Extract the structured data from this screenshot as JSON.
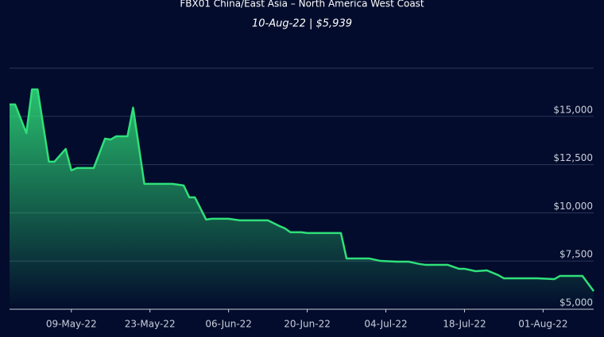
{
  "chart_data": {
    "type": "area-line",
    "title": "FBX01 China/East Asia – North America West Coast",
    "subtitle": "10-Aug-22 | $5,939",
    "x": [
      "2022-04-28",
      "2022-04-29",
      "2022-05-01",
      "2022-05-02",
      "2022-05-03",
      "2022-05-05",
      "2022-05-06",
      "2022-05-08",
      "2022-05-09",
      "2022-05-10",
      "2022-05-13",
      "2022-05-15",
      "2022-05-16",
      "2022-05-17",
      "2022-05-19",
      "2022-05-20",
      "2022-05-22",
      "2022-05-27",
      "2022-05-29",
      "2022-05-30",
      "2022-05-31",
      "2022-06-02",
      "2022-06-03",
      "2022-06-06",
      "2022-06-08",
      "2022-06-13",
      "2022-06-15",
      "2022-06-16",
      "2022-06-17",
      "2022-06-19",
      "2022-06-20",
      "2022-06-26",
      "2022-06-27",
      "2022-07-01",
      "2022-07-03",
      "2022-07-06",
      "2022-07-08",
      "2022-07-10",
      "2022-07-11",
      "2022-07-15",
      "2022-07-17",
      "2022-07-18",
      "2022-07-20",
      "2022-07-22",
      "2022-07-24",
      "2022-07-25",
      "2022-07-31",
      "2022-08-03",
      "2022-08-04",
      "2022-08-08",
      "2022-08-10"
    ],
    "series": [
      {
        "color": "#2fe07a",
        "values": [
          15617,
          15617,
          14136,
          16399,
          16399,
          12654,
          12654,
          13313,
          12202,
          12325,
          12325,
          13848,
          13800,
          13971,
          13971,
          15453,
          11502,
          11502,
          11420,
          10802,
          10802,
          9650,
          9691,
          9691,
          9609,
          9609,
          9321,
          9198,
          8992,
          8992,
          8951,
          8951,
          7634,
          7634,
          7510,
          7469,
          7469,
          7346,
          7305,
          7305,
          7099,
          7099,
          6975,
          7016,
          6770,
          6605,
          6605,
          6560,
          6728,
          6728,
          5939
        ]
      }
    ],
    "xlim": [
      "2022-04-28",
      "2022-08-10"
    ],
    "xticks": [
      {
        "value": "2022-05-09",
        "label": "09-May-22"
      },
      {
        "value": "2022-05-23",
        "label": "23-May-22"
      },
      {
        "value": "2022-06-06",
        "label": "06-Jun-22"
      },
      {
        "value": "2022-06-20",
        "label": "20-Jun-22"
      },
      {
        "value": "2022-07-04",
        "label": "04-Jul-22"
      },
      {
        "value": "2022-07-18",
        "label": "18-Jul-22"
      },
      {
        "value": "2022-08-01",
        "label": "01-Aug-22"
      }
    ],
    "ylim": [
      5000,
      17500
    ],
    "yticks": [
      {
        "value": 5000,
        "label": "$5,000"
      },
      {
        "value": 7500,
        "label": "$7,500"
      },
      {
        "value": 10000,
        "label": "$10,000"
      },
      {
        "value": 12500,
        "label": "$12,500"
      },
      {
        "value": 15000,
        "label": "$15,000"
      }
    ],
    "grid": true
  }
}
